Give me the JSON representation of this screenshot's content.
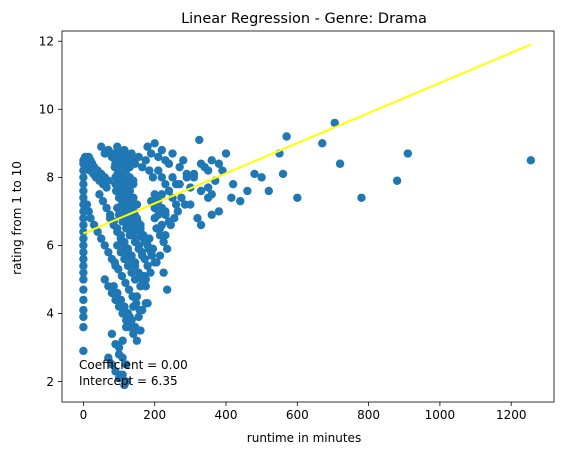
{
  "chart_data": {
    "type": "scatter",
    "title": "Linear Regression - Genre: Drama",
    "xlabel": "runtime in minutes",
    "ylabel": "rating from 1 to 10",
    "xlim": [
      -60,
      1320
    ],
    "ylim": [
      1.4,
      12.3
    ],
    "xticks": [
      0,
      200,
      400,
      600,
      800,
      1000,
      1200
    ],
    "yticks": [
      2,
      4,
      6,
      8,
      10,
      12
    ],
    "grid": false,
    "legend": "none",
    "annotations": [
      "Coefficient = 0.00",
      "Intercept = 6.35"
    ],
    "colors": {
      "points": "#1f77b4",
      "regression_line": "#ffff00"
    },
    "series": [
      {
        "kind": "scatter",
        "x": [
          0,
          0,
          0,
          0,
          0,
          0,
          0,
          0,
          0,
          0,
          0,
          0,
          0,
          0,
          0,
          0,
          0,
          0,
          0,
          0,
          0,
          0,
          0,
          0,
          0,
          5,
          8,
          10,
          12,
          15,
          18,
          20,
          25,
          28,
          30,
          35,
          40,
          45,
          50,
          55,
          60,
          65,
          70,
          10,
          15,
          20,
          30,
          40,
          50,
          60,
          70,
          80,
          90,
          50,
          60,
          70,
          80,
          90,
          100,
          110,
          120,
          130,
          140,
          45,
          55,
          65,
          75,
          85,
          95,
          105,
          115,
          125,
          135,
          145,
          60,
          70,
          80,
          90,
          100,
          110,
          120,
          130,
          140,
          150,
          160,
          70,
          80,
          90,
          100,
          110,
          120,
          130,
          140,
          150,
          75,
          85,
          95,
          105,
          115,
          125,
          135,
          145,
          155,
          165,
          175,
          80,
          90,
          100,
          110,
          120,
          130,
          140,
          150,
          160,
          170,
          85,
          95,
          105,
          115,
          125,
          135,
          145,
          155,
          165,
          175,
          185,
          195,
          90,
          100,
          110,
          120,
          130,
          140,
          150,
          160,
          170,
          180,
          190,
          88,
          96,
          104,
          112,
          120,
          128,
          136,
          144,
          152,
          160,
          168,
          176,
          184,
          192,
          200,
          92,
          100,
          108,
          116,
          124,
          132,
          140,
          148,
          156,
          164,
          172,
          180,
          188,
          85,
          95,
          105,
          115,
          125,
          135,
          145,
          155,
          165,
          175,
          90,
          100,
          110,
          120,
          130,
          140,
          150,
          160,
          88,
          98,
          108,
          118,
          128,
          138,
          148,
          158,
          95,
          105,
          115,
          125,
          135,
          145,
          155,
          165,
          90,
          100,
          110,
          120,
          130,
          140,
          150,
          95,
          105,
          115,
          125,
          135,
          145,
          100,
          110,
          120,
          130,
          140,
          95,
          105,
          115,
          125,
          135,
          100,
          110,
          120,
          130,
          100,
          110,
          120,
          105,
          115,
          70,
          80,
          90,
          100,
          110,
          120,
          140,
          160,
          175,
          180,
          200,
          210,
          220,
          230,
          240,
          250,
          260,
          270,
          280,
          290,
          300,
          205,
          215,
          225,
          235,
          245,
          255,
          265,
          275,
          285,
          210,
          220,
          230,
          240,
          250,
          260,
          270,
          290,
          310,
          330,
          350,
          180,
          190,
          200,
          210,
          220,
          230,
          240,
          250,
          185,
          195,
          205,
          215,
          225,
          235,
          190,
          200,
          210,
          220,
          230,
          200,
          215,
          230,
          220,
          230,
          310,
          325,
          340,
          350,
          360,
          370,
          380,
          390,
          400,
          300,
          320,
          330,
          350,
          360,
          380,
          330,
          360,
          415,
          420,
          440,
          460,
          480,
          500,
          520,
          550,
          560,
          570,
          600,
          670,
          705,
          720,
          780,
          880,
          910,
          1255
        ],
        "y": [
          8.4,
          8.2,
          8.0,
          7.8,
          7.6,
          7.4,
          7.2,
          7.0,
          6.8,
          6.6,
          6.4,
          6.2,
          6.0,
          5.8,
          5.6,
          5.4,
          5.2,
          5.0,
          4.7,
          4.4,
          4.1,
          3.9,
          3.6,
          2.9,
          8.5,
          8.6,
          8.4,
          8.5,
          8.3,
          8.6,
          8.2,
          8.5,
          8.4,
          8.1,
          8.3,
          8.0,
          8.2,
          7.9,
          8.1,
          7.8,
          8.0,
          7.7,
          7.9,
          7.2,
          7.0,
          6.8,
          6.6,
          6.4,
          6.2,
          6.0,
          5.8,
          5.6,
          5.4,
          8.9,
          8.7,
          8.8,
          8.6,
          8.5,
          8.7,
          8.4,
          8.6,
          8.3,
          8.5,
          7.5,
          7.3,
          7.1,
          6.9,
          6.7,
          6.5,
          6.3,
          6.1,
          5.9,
          5.7,
          5.5,
          5.0,
          4.8,
          4.6,
          4.4,
          4.2,
          4.0,
          3.8,
          3.6,
          3.4,
          3.2,
          3.5,
          8.8,
          8.6,
          8.4,
          8.2,
          8.0,
          7.8,
          7.6,
          7.4,
          7.2,
          6.8,
          6.6,
          6.4,
          6.2,
          6.0,
          5.8,
          5.6,
          5.4,
          5.2,
          5.0,
          4.8,
          3.4,
          3.1,
          2.8,
          3.2,
          3.6,
          3.9,
          4.2,
          4.5,
          4.8,
          5.1,
          8.7,
          8.9,
          8.6,
          8.8,
          8.5,
          8.7,
          8.4,
          8.6,
          8.3,
          8.5,
          8.2,
          8.0,
          7.8,
          7.6,
          7.4,
          7.2,
          7.0,
          6.8,
          6.6,
          6.4,
          6.2,
          6.0,
          5.8,
          8.3,
          8.1,
          7.9,
          7.7,
          7.5,
          7.3,
          7.1,
          6.9,
          6.7,
          6.5,
          6.3,
          6.1,
          5.9,
          5.7,
          5.5,
          7.6,
          7.4,
          7.2,
          7.0,
          6.8,
          6.6,
          6.4,
          6.2,
          6.0,
          5.8,
          5.6,
          5.4,
          5.2,
          4.8,
          4.6,
          4.4,
          4.2,
          4.0,
          3.8,
          3.6,
          3.9,
          4.1,
          4.3,
          8.0,
          7.8,
          7.6,
          7.4,
          7.2,
          7.0,
          6.8,
          6.6,
          5.5,
          5.3,
          5.1,
          4.9,
          4.7,
          4.5,
          4.3,
          4.1,
          7.1,
          6.9,
          6.7,
          6.5,
          6.3,
          6.1,
          5.9,
          5.7,
          8.4,
          8.2,
          8.0,
          7.8,
          7.6,
          7.4,
          7.2,
          6.0,
          5.8,
          5.6,
          5.4,
          5.2,
          5.0,
          8.6,
          8.4,
          8.2,
          8.0,
          7.8,
          4.6,
          4.4,
          4.2,
          4.0,
          3.8,
          6.9,
          6.7,
          6.5,
          6.3,
          3.0,
          2.7,
          2.5,
          2.2,
          1.9,
          2.7,
          2.5,
          2.3,
          2.1,
          2.2,
          2.0,
          7.9,
          6.5,
          5.0,
          4.3,
          7.5,
          7.3,
          7.1,
          6.9,
          6.7,
          8.0,
          7.8,
          8.3,
          8.5,
          8.1,
          7.7,
          6.5,
          6.3,
          6.1,
          5.9,
          6.6,
          6.8,
          7.0,
          7.4,
          7.2,
          8.2,
          8.0,
          7.8,
          7.6,
          7.4,
          7.2,
          7.8,
          8.0,
          8.1,
          8.4,
          8.2,
          8.9,
          8.7,
          9.0,
          8.6,
          8.8,
          8.5,
          8.4,
          8.7,
          6.2,
          5.9,
          5.5,
          5.7,
          5.2,
          4.7,
          7.3,
          7.1,
          6.9,
          6.6,
          7.0,
          6.8,
          6.5,
          6.3,
          7.5,
          6.9,
          8.0,
          9.1,
          8.3,
          7.7,
          7.5,
          7.9,
          8.4,
          8.2,
          8.7,
          7.2,
          6.8,
          7.6,
          7.4,
          8.5,
          7.0,
          6.6,
          6.9,
          7.4,
          7.8,
          7.3,
          7.6,
          8.1,
          8.0,
          7.6,
          8.7,
          8.1,
          9.2,
          7.4,
          9.0,
          9.6,
          8.4,
          7.4,
          7.9,
          8.7,
          8.5
        ]
      },
      {
        "kind": "line",
        "x": [
          0,
          1255
        ],
        "y": [
          6.35,
          11.9
        ]
      }
    ]
  }
}
